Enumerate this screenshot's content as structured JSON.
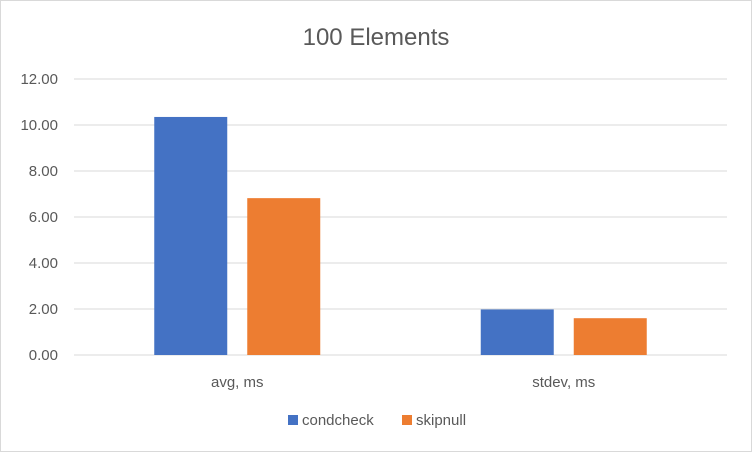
{
  "chart_data": {
    "type": "bar",
    "title": "100 Elements",
    "categories": [
      "avg, ms",
      "stdev, ms"
    ],
    "series": [
      {
        "name": "condcheck",
        "values": [
          10.35,
          1.98
        ],
        "color": "#4472C4"
      },
      {
        "name": "skipnull",
        "values": [
          6.82,
          1.6
        ],
        "color": "#ED7D31"
      }
    ],
    "ylim": [
      0,
      12
    ],
    "yticks": [
      "0.00",
      "2.00",
      "4.00",
      "6.00",
      "8.00",
      "10.00",
      "12.00"
    ],
    "ytick_values": [
      0,
      2,
      4,
      6,
      8,
      10,
      12
    ],
    "grid": true,
    "legend": "bottom"
  }
}
